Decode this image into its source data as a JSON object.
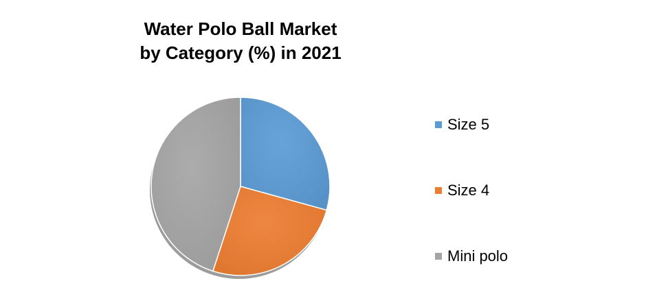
{
  "chart_data": {
    "type": "pie",
    "title_lines": [
      "Water Polo Ball Market",
      "by Category (%) in 2021"
    ],
    "categories": [
      "Size 5",
      "Size 4",
      "Mini polo"
    ],
    "values": [
      29.3,
      25.7,
      45.0
    ],
    "colors": [
      "#5B9BD5",
      "#ED7D31",
      "#A5A5A5"
    ],
    "legend_position": "right",
    "style": "3d-shadow"
  }
}
